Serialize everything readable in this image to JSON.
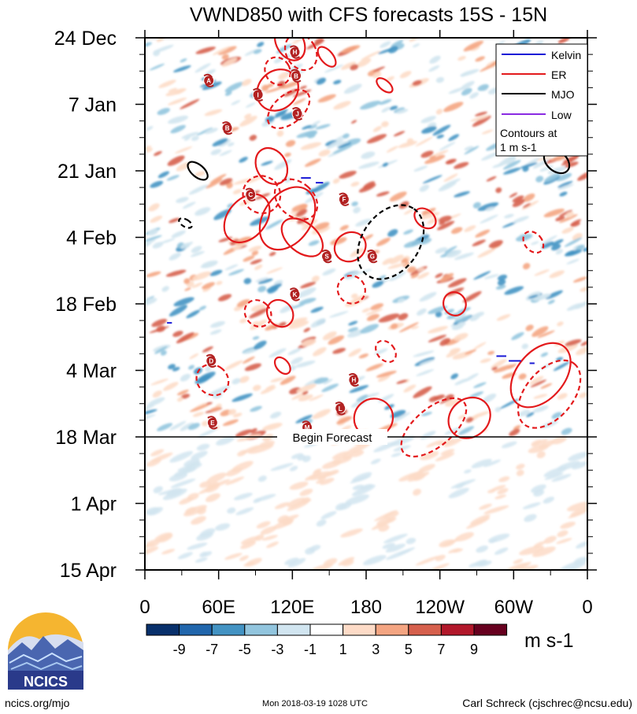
{
  "chart_data": {
    "type": "heatmap",
    "title": "VWND850 with CFS forecasts  15S - 15N",
    "x_ticks": [
      "0",
      "60E",
      "120E",
      "180",
      "120W",
      "60W",
      "0"
    ],
    "x_tick_lon": [
      0,
      60,
      120,
      180,
      240,
      300,
      360
    ],
    "y_ticks": [
      "24 Dec",
      "7 Jan",
      "21 Jan",
      "4 Feb",
      "18 Feb",
      "4 Mar",
      "18 Mar",
      "1 Apr",
      "15 Apr"
    ],
    "y_tick_day": [
      0,
      14,
      28,
      42,
      56,
      70,
      84,
      98,
      112
    ],
    "xlim_lon": [
      0,
      360
    ],
    "ylim_day": [
      0,
      112
    ],
    "forecast_start_day": 84,
    "forecast_label": "Begin Forecast",
    "legend": {
      "placement": "top-right",
      "items": [
        {
          "label": "Kelvin",
          "color": "#1a1ad6"
        },
        {
          "label": "ER",
          "color": "#e31a1c"
        },
        {
          "label": "MJO",
          "color": "#000000"
        },
        {
          "label": "Low",
          "color": "#8a2be2"
        }
      ],
      "note": "Contours at\n1 m s-1"
    },
    "colorbar": {
      "labels": [
        "-9",
        "-7",
        "-5",
        "-3",
        "-1",
        "1",
        "3",
        "5",
        "7",
        "9"
      ],
      "colors": [
        "#08306b",
        "#2166ac",
        "#4393c3",
        "#92c5de",
        "#d1e5f0",
        "#ffffff",
        "#fddbc7",
        "#f4a582",
        "#d6604d",
        "#b2182b",
        "#67001f"
      ],
      "units": "m s-1"
    },
    "storms": [
      {
        "label": "H",
        "lon": 122,
        "day": 3
      },
      {
        "label": "A",
        "lon": 52,
        "day": 9
      },
      {
        "label": "B",
        "lon": 123,
        "day": 8
      },
      {
        "label": "I",
        "lon": 92,
        "day": 12
      },
      {
        "label": "J",
        "lon": 124,
        "day": 16
      },
      {
        "label": "B",
        "lon": 67,
        "day": 19
      },
      {
        "label": "C",
        "lon": 86,
        "day": 33
      },
      {
        "label": "F",
        "lon": 162,
        "day": 34
      },
      {
        "label": "S",
        "lon": 148,
        "day": 46
      },
      {
        "label": "G",
        "lon": 185,
        "day": 46
      },
      {
        "label": "K",
        "lon": 122,
        "day": 54
      },
      {
        "label": "D",
        "lon": 54,
        "day": 68
      },
      {
        "label": "H",
        "lon": 170,
        "day": 72
      },
      {
        "label": "L",
        "lon": 159,
        "day": 78
      },
      {
        "label": "E",
        "lon": 55,
        "day": 81
      },
      {
        "label": "M",
        "lon": 132,
        "day": 82
      }
    ]
  },
  "footer": {
    "logo_text": "NCICS",
    "site": "ncics.org/mjo",
    "timestamp": "Mon 2018-03-19 1028 UTC",
    "author": "Carl Schreck (cjschrec@ncsu.edu)"
  },
  "colors": {
    "er": "#e31a1c",
    "mjo": "#000000",
    "kelvin": "#1a1ad6",
    "low": "#8a2be2"
  }
}
